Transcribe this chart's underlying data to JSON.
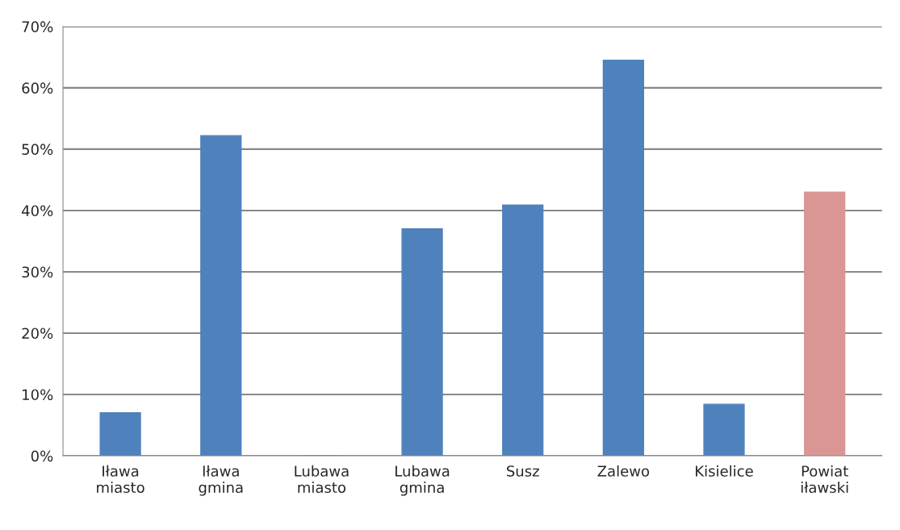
{
  "chart_data": {
    "type": "bar",
    "categories": [
      "Iława\nmiasto",
      "Iława\ngmina",
      "Lubawa\nmiasto",
      "Lubawa\ngmina",
      "Susz",
      "Zalewo",
      "Kisielice",
      "Powiat\niławski"
    ],
    "values": [
      7.0,
      52.2,
      0,
      37.0,
      40.9,
      64.5,
      8.4,
      43.0
    ],
    "colors": [
      "#4f81bd",
      "#4f81bd",
      "#4f81bd",
      "#4f81bd",
      "#4f81bd",
      "#4f81bd",
      "#4f81bd",
      "#d99694"
    ],
    "ylim": [
      0,
      70
    ],
    "yticks": [
      {
        "value": 0,
        "label": "0%"
      },
      {
        "value": 10,
        "label": "10%"
      },
      {
        "value": 20,
        "label": "20%"
      },
      {
        "value": 30,
        "label": "30%"
      },
      {
        "value": 40,
        "label": "40%"
      },
      {
        "value": 50,
        "label": "50%"
      },
      {
        "value": 60,
        "label": "60%"
      },
      {
        "value": 70,
        "label": "70%"
      }
    ],
    "grid": "y"
  }
}
